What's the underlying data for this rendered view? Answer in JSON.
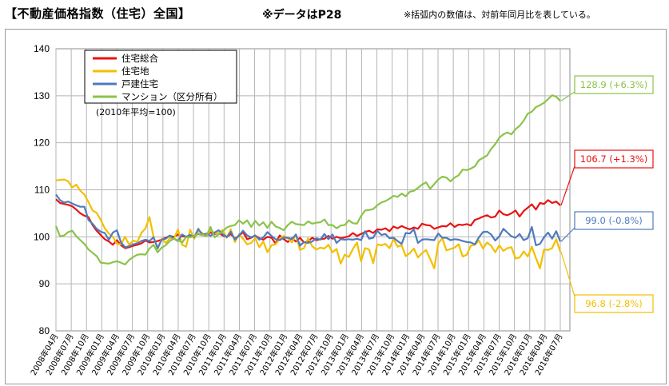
{
  "header": {
    "title": "【不動産価格指数（住宅）全国】",
    "note_page": "※データはP28",
    "note_ratio": "※括弧内の数値は、対前年同月比を表している。"
  },
  "chart_data": {
    "type": "line",
    "title": "不動産価格指数（住宅）全国",
    "base_note": "(2010年平均=100)",
    "ylim": [
      80,
      140
    ],
    "yticks": [
      80,
      90,
      100,
      110,
      120,
      130,
      140
    ],
    "x_tick_labels": [
      "2008年04月",
      "2008年07月",
      "2008年10月",
      "2009年01月",
      "2009年04月",
      "2009年07月",
      "2009年10月",
      "2010年01月",
      "2010年04月",
      "2010年07月",
      "2010年10月",
      "2011年01月",
      "2011年04月",
      "2011年07月",
      "2011年10月",
      "2012年01月",
      "2012年04月",
      "2012年07月",
      "2012年10月",
      "2013年01月",
      "2013年04月",
      "2013年07月",
      "2013年10月",
      "2014年01月",
      "2014年04月",
      "2014年07月",
      "2014年10月",
      "2015年01月",
      "2015年04月",
      "2015年07月",
      "2015年10月",
      "2016年01月",
      "2016年04月",
      "2016年07月"
    ],
    "grid": true,
    "legend_position": "top-left",
    "series": [
      {
        "name": "住宅総合",
        "color": "#e81313",
        "callout": "106.7 (+1.3%)",
        "values": [
          108,
          107.2,
          107,
          106.8,
          106.5,
          105.8,
          105,
          104.5,
          104.2,
          102.5,
          101.3,
          100.4,
          99.5,
          99,
          98.3,
          99.3,
          98.2,
          97.6,
          97.8,
          98.1,
          98.3,
          98.6,
          99.2,
          98.8,
          98.9,
          99.1,
          99.4,
          99.8,
          100.2,
          100,
          100.5,
          100.1,
          100,
          100.3,
          100.2,
          100.6,
          100.4,
          100.4,
          100.9,
          100.6,
          100.8,
          100.3,
          100,
          100.6,
          99.6,
          100.2,
          101,
          99.5,
          99.8,
          100.3,
          99.7,
          99.4,
          100,
          99.8,
          98.6,
          100.3,
          99.5,
          98.9,
          99.7,
          99,
          99.8,
          98.8,
          99,
          99.8,
          99.3,
          99.5,
          99.6,
          100.2,
          99.6,
          100,
          99.7,
          99.9,
          100.1,
          100.8,
          100.2,
          100.6,
          101,
          101.3,
          100.8,
          101.6,
          101.5,
          101.8,
          101.2,
          102.2,
          101.8,
          102.3,
          101.9,
          101.6,
          102,
          101.7,
          102.8,
          102.5,
          102.4,
          101.7,
          102,
          102.3,
          102.2,
          102.9,
          102.1,
          102.6,
          102.5,
          102.7,
          102.4,
          103.6,
          103.9,
          104.3,
          104.6,
          104.1,
          104.3,
          105.6,
          104.8,
          104.6,
          105,
          105.6,
          104.3,
          105.5,
          106.2,
          106.9,
          105.8,
          107.2,
          107,
          107.8,
          107.2,
          107.5,
          106.7
        ]
      },
      {
        "name": "住宅地",
        "color": "#f3bf00",
        "callout": "96.8 (-2.8%)",
        "values": [
          112,
          112.1,
          112.2,
          111.8,
          110.5,
          111.1,
          109.8,
          109,
          107.4,
          105.6,
          105.1,
          103.6,
          101.8,
          100.7,
          100,
          98.5,
          98.4,
          100,
          98.3,
          99.2,
          98.9,
          100.8,
          101.8,
          104.2,
          100,
          97.4,
          99.6,
          98.7,
          99.7,
          99.6,
          101.6,
          98.3,
          97.9,
          101.5,
          99.6,
          101.3,
          100.8,
          100.1,
          101.4,
          100.8,
          100.7,
          101.5,
          99.8,
          101.6,
          98.9,
          100.5,
          99.6,
          98.4,
          98.7,
          99.7,
          97.8,
          99,
          96.7,
          98.2,
          98.4,
          99.6,
          100.2,
          99.7,
          98.8,
          100.5,
          97.2,
          97.6,
          99.7,
          98,
          97.3,
          97.7,
          97.5,
          98.3,
          96.7,
          97.4,
          94.3,
          96.2,
          95.7,
          97.4,
          98.8,
          94.8,
          97.6,
          97.3,
          94.4,
          98.4,
          98.2,
          98.5,
          97.6,
          99.5,
          97.9,
          98.2,
          95.9,
          96.5,
          97.5,
          95.6,
          96.5,
          97.2,
          95.3,
          93.3,
          98.6,
          99.7,
          97.1,
          97.4,
          97.7,
          98.4,
          95.8,
          96.2,
          98.1,
          98.3,
          99.2,
          97.5,
          98.8,
          98.1,
          96.7,
          98.2,
          97,
          97.6,
          97.8,
          95.4,
          95.6,
          96.9,
          95.8,
          97.9,
          95.5,
          93.3,
          97.3,
          97.2,
          97.6,
          99.5,
          96.8
        ]
      },
      {
        "name": "戸建住宅",
        "color": "#4f7bbd",
        "callout": "99.0 (-0.8%)",
        "values": [
          109,
          107.8,
          107.3,
          107.5,
          107.1,
          106.7,
          106.4,
          106.4,
          103.6,
          102.8,
          101.7,
          101.1,
          100.8,
          99.4,
          100.9,
          101.4,
          98.8,
          97.8,
          98,
          98.4,
          98.6,
          99.1,
          99.4,
          99.1,
          99.9,
          97.6,
          99.4,
          99.6,
          100.3,
          99.6,
          99.1,
          100.5,
          100,
          100.4,
          99.9,
          101.7,
          100.4,
          100.7,
          100.2,
          100.9,
          101.4,
          100.6,
          99.9,
          101.1,
          99.4,
          100.3,
          101.3,
          100.3,
          99.9,
          100.3,
          99.4,
          99.9,
          101,
          100.2,
          99.5,
          99.3,
          99.8,
          99.8,
          99.5,
          100.5,
          98.1,
          98.9,
          98.7,
          99,
          99.7,
          99.4,
          100.6,
          99.5,
          100.5,
          98.7,
          99.5,
          99.4,
          99.5,
          99.4,
          99.6,
          99.3,
          101.2,
          99.6,
          99.8,
          101.3,
          100.4,
          100.6,
          99.7,
          99.8,
          99.1,
          98.5,
          100.8,
          100.7,
          101.6,
          98.7,
          99.4,
          99.5,
          99.4,
          99.3,
          100.7,
          99.8,
          99.8,
          99.3,
          99.5,
          99.4,
          99.1,
          98.9,
          98.8,
          98.4,
          99.9,
          101,
          101.1,
          100.5,
          99.2,
          100.1,
          101.7,
          100.9,
          100.1,
          99.8,
          100.6,
          99.3,
          99.7,
          102.1,
          98.2,
          98.5,
          99.9,
          100.9,
          99.6,
          101.2,
          99
        ]
      },
      {
        "name": "マンション（区分所有）",
        "color": "#8bc34a",
        "callout": "128.9 (+6.3%)",
        "values": [
          102.3,
          100.1,
          100.3,
          101,
          101.3,
          100.1,
          99.3,
          98.5,
          97.3,
          96.6,
          95.9,
          94.5,
          94.4,
          94.3,
          94.6,
          94.8,
          94.5,
          94.1,
          95.1,
          95.7,
          96.2,
          96.3,
          96.2,
          97.5,
          98.3,
          96.7,
          97.7,
          98.2,
          99.1,
          99.6,
          99.3,
          98.8,
          99.9,
          99.9,
          100.1,
          100.7,
          100.4,
          100.2,
          102.1,
          99.9,
          100.5,
          101.1,
          102,
          102.3,
          102.5,
          103.5,
          102.8,
          103.5,
          102.1,
          103.4,
          102.4,
          103.1,
          101.9,
          103.2,
          102.2,
          101.9,
          101.4,
          102.5,
          103.2,
          102.7,
          102.6,
          102.5,
          103.3,
          102.8,
          103,
          103.1,
          103.7,
          102.5,
          102.5,
          101.8,
          102.4,
          102.5,
          103.5,
          102.9,
          102.8,
          104.4,
          105.6,
          105.7,
          105.9,
          106.7,
          107.3,
          107.6,
          108.1,
          108.7,
          108.5,
          109.2,
          108.6,
          109.6,
          109.8,
          110.4,
          111.1,
          111.6,
          110.2,
          111.2,
          112.2,
          112.8,
          112.6,
          111.8,
          112.6,
          113.1,
          114.3,
          114.2,
          114.5,
          115,
          116.3,
          116.8,
          117.3,
          118.7,
          119.7,
          121.1,
          121.8,
          122.2,
          121.8,
          122.9,
          123.6,
          124.7,
          126.2,
          126.6,
          127.6,
          128,
          128.5,
          129.3,
          130.1,
          129.8,
          128.9
        ]
      }
    ]
  }
}
